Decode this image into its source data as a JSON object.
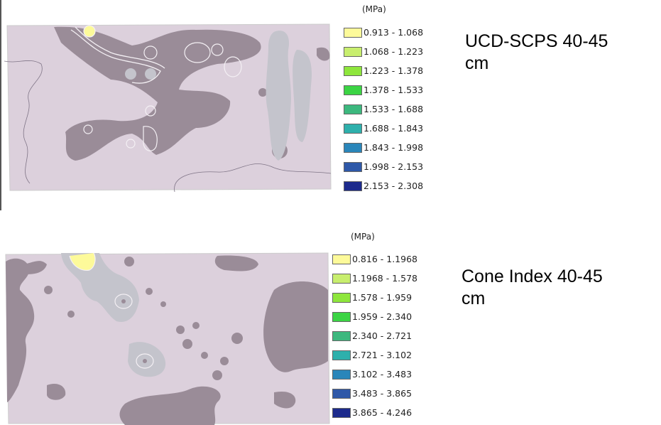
{
  "panels": [
    {
      "caption": "UCD-SCPS  40-45\ncm",
      "unit": "(MPa)",
      "legend": [
        {
          "range": "0.913 - 1.068",
          "color": "#fdfa9a"
        },
        {
          "range": "1.068 - 1.223",
          "color": "#c8ee6e"
        },
        {
          "range": "1.223 - 1.378",
          "color": "#8ee63c"
        },
        {
          "range": "1.378 - 1.533",
          "color": "#3bd444"
        },
        {
          "range": "1.533 - 1.688",
          "color": "#3cb87e"
        },
        {
          "range": "1.688 - 1.843",
          "color": "#2eb0ac"
        },
        {
          "range": "1.843 - 1.998",
          "color": "#2a86ba"
        },
        {
          "range": "1.998 - 2.153",
          "color": "#2e58a8"
        },
        {
          "range": "2.153 - 2.308",
          "color": "#1c2a8c"
        }
      ]
    },
    {
      "caption": "Cone Index  40-45\ncm",
      "unit": "(MPa)",
      "legend": [
        {
          "range": "0.816 - 1.1968",
          "color": "#fdfa9a"
        },
        {
          "range": "1.1968 - 1.578",
          "color": "#c8ee6e"
        },
        {
          "range": "1.578 - 1.959",
          "color": "#8ee63c"
        },
        {
          "range": "1.959 - 2.340",
          "color": "#3bd444"
        },
        {
          "range": "2.340 - 2.721",
          "color": "#3cb87e"
        },
        {
          "range": "2.721 - 3.102",
          "color": "#2eb0ac"
        },
        {
          "range": "3.102 - 3.483",
          "color": "#2a86ba"
        },
        {
          "range": "3.483 - 3.865",
          "color": "#2e58a8"
        },
        {
          "range": "3.865 - 4.246",
          "color": "#1c2a8c"
        }
      ]
    }
  ],
  "map_colors": {
    "background": "#dcd0dc",
    "dark_zone": "#9a8c98",
    "light_zone": "#c4c4cc",
    "contour": "#f4f0f4"
  }
}
